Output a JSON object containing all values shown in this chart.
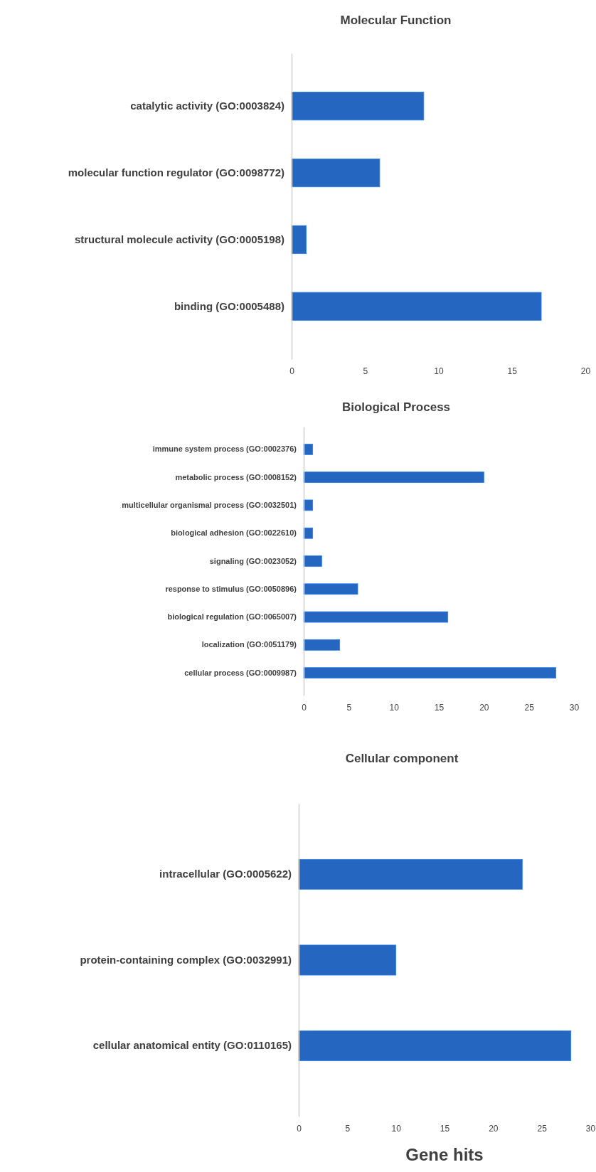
{
  "chart_data": [
    {
      "type": "bar",
      "orientation": "horizontal",
      "title": "Molecular Function",
      "categories": [
        "catalytic activity (GO:0003824)",
        "molecular function regulator (GO:0098772)",
        "structural molecule activity (GO:0005198)",
        "binding (GO:0005488)"
      ],
      "values": [
        9,
        6,
        1,
        17
      ],
      "color": "#2466c0",
      "xlim": [
        0,
        20
      ],
      "xticks": [
        0,
        5,
        10,
        15,
        20
      ],
      "grid": false
    },
    {
      "type": "bar",
      "orientation": "horizontal",
      "title": "Biological Process",
      "categories": [
        "immune system process (GO:0002376)",
        "metabolic process (GO:0008152)",
        "multicellular organismal process (GO:0032501)",
        "biological adhesion (GO:0022610)",
        "signaling (GO:0023052)",
        "response to stimulus (GO:0050896)",
        "biological regulation (GO:0065007)",
        "localization (GO:0051179)",
        "cellular process (GO:0009987)"
      ],
      "values": [
        1,
        20,
        1,
        1,
        2,
        6,
        16,
        4,
        28
      ],
      "color": "#2466c0",
      "xlim": [
        0,
        30
      ],
      "xticks": [
        0,
        5,
        10,
        15,
        20,
        25,
        30
      ],
      "grid": false
    },
    {
      "type": "bar",
      "orientation": "horizontal",
      "title": "Cellular component",
      "xlabel": "Gene hits",
      "categories": [
        "intracellular (GO:0005622)",
        "protein-containing complex (GO:0032991)",
        "cellular anatomical entity (GO:0110165)"
      ],
      "values": [
        23,
        10,
        28
      ],
      "color": "#2466c0",
      "xlim": [
        0,
        30
      ],
      "xticks": [
        0,
        5,
        10,
        15,
        20,
        25,
        30
      ],
      "grid": false
    }
  ]
}
